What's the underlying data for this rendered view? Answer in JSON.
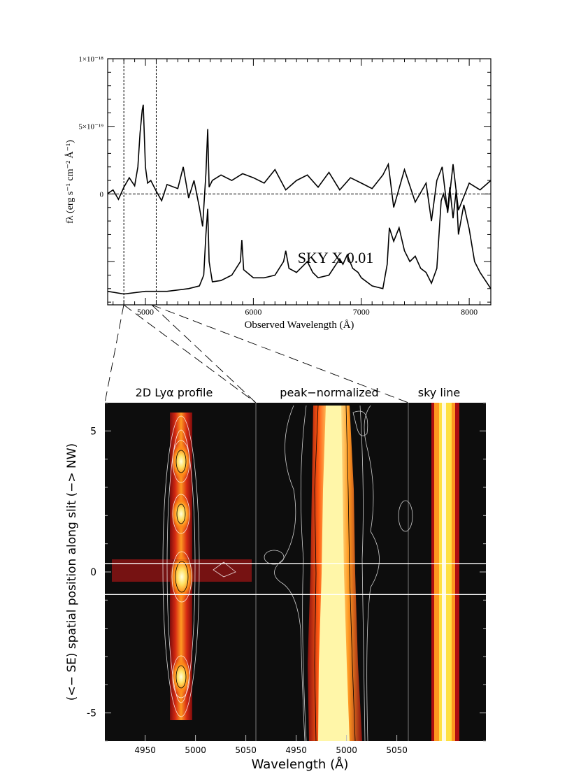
{
  "chart_data": [
    {
      "type": "line",
      "xlabel": "Observed Wavelength (Å)",
      "ylabel": "fλ (erg s⁻¹ cm⁻² Å⁻¹)",
      "xlim": [
        4650,
        8200
      ],
      "ylim": [
        -8.2e-19,
        1e-18
      ],
      "x_ticks": [
        5000,
        6000,
        7000,
        8000
      ],
      "y_ticks": [
        {
          "value": 1e-18,
          "label": "1×10⁻¹⁸"
        },
        {
          "value": 5e-19,
          "label": "5×10⁻¹⁹"
        },
        {
          "value": 0,
          "label": "0"
        }
      ],
      "vertical_markers": [
        4800,
        5100
      ],
      "annotation": "SKY X 0.01",
      "series": [
        {
          "name": "",
          "x": [
            4650,
            4700,
            4750,
            4800,
            4850,
            4900,
            4930,
            4950,
            4970,
            4980,
            5000,
            5020,
            5050,
            5100,
            5150,
            5200,
            5300,
            5350,
            5400,
            5450,
            5500,
            5530,
            5560,
            5577,
            5590,
            5620,
            5700,
            5800,
            5900,
            6000,
            6100,
            6200,
            6300,
            6400,
            6500,
            6600,
            6700,
            6800,
            6900,
            7000,
            7100,
            7200,
            7250,
            7300,
            7400,
            7500,
            7600,
            7650,
            7700,
            7750,
            7800,
            7850,
            7900,
            8000,
            8100,
            8200
          ],
          "y": [
            3e-21,
            3e-20,
            -4e-20,
            5e-20,
            1.2e-19,
            6e-20,
            2e-19,
            4.5e-19,
            6.2e-19,
            6.6e-19,
            2e-19,
            8e-20,
            1e-19,
            2e-20,
            -5e-20,
            7e-20,
            4e-20,
            2e-19,
            -3e-20,
            1e-19,
            -1e-19,
            -2.4e-19,
            1.5e-19,
            4.8e-19,
            5e-20,
            1e-19,
            1.4e-19,
            1e-19,
            1.5e-19,
            1.2e-19,
            8e-20,
            1.8e-19,
            3e-20,
            1e-19,
            1.4e-19,
            5e-20,
            1.6e-19,
            3e-20,
            1.2e-19,
            8e-20,
            4e-20,
            1.4e-19,
            2.2e-19,
            -1e-19,
            1.8e-19,
            -6e-20,
            8e-20,
            -2e-19,
            1e-19,
            2e-19,
            -1.4e-19,
            2.2e-19,
            -1.2e-19,
            8e-20,
            3e-20,
            1e-19
          ]
        },
        {
          "name": "SKY X 0.01",
          "x": [
            4650,
            4800,
            5000,
            5200,
            5400,
            5500,
            5540,
            5560,
            5577,
            5590,
            5620,
            5700,
            5800,
            5880,
            5893,
            5910,
            6000,
            6100,
            6200,
            6280,
            6300,
            6330,
            6400,
            6450,
            6500,
            6550,
            6600,
            6700,
            6800,
            6830,
            6870,
            6920,
            6970,
            7000,
            7100,
            7200,
            7240,
            7260,
            7300,
            7350,
            7400,
            7450,
            7500,
            7550,
            7600,
            7650,
            7700,
            7740,
            7760,
            7800,
            7820,
            7850,
            7880,
            7900,
            7950,
            8000,
            8050,
            8100,
            8200
          ],
          "y": [
            -7.2e-19,
            -7.4e-19,
            -7.2e-19,
            -7.2e-19,
            -7e-19,
            -6.8e-19,
            -6e-19,
            -3e-19,
            -1.1e-19,
            -5e-19,
            -6.5e-19,
            -6.4e-19,
            -6e-19,
            -5e-19,
            -3.4e-19,
            -5.6e-19,
            -6.2e-19,
            -6.2e-19,
            -6e-19,
            -5e-19,
            -4.2e-19,
            -5.5e-19,
            -5.8e-19,
            -5.4e-19,
            -5e-19,
            -5.8e-19,
            -6.2e-19,
            -6e-19,
            -4.8e-19,
            -5.2e-19,
            -4.5e-19,
            -5.5e-19,
            -5.8e-19,
            -6.2e-19,
            -6.8e-19,
            -7e-19,
            -5.2e-19,
            -2.5e-19,
            -3.5e-19,
            -2.5e-19,
            -4.2e-19,
            -5e-19,
            -4.6e-19,
            -5.5e-19,
            -5.8e-19,
            -6.6e-19,
            -5.5e-19,
            -5e-20,
            0,
            -1.2e-19,
            5e-20,
            -1.8e-19,
            3e-20,
            -3e-19,
            -8e-20,
            -2.6e-19,
            -5e-19,
            -5.8e-19,
            -7e-19
          ]
        }
      ]
    },
    {
      "type": "heatmap",
      "panels": [
        {
          "title": "2D Lyα profile",
          "x_ticks": [
            4950,
            5000,
            5050
          ]
        },
        {
          "title": "peak−normalized",
          "x_ticks": [
            4950,
            5000,
            5050
          ]
        },
        {
          "title": "sky line",
          "x_ticks": []
        }
      ],
      "xlabel": "Wavelength (Å)",
      "ylabel": "(<− SE) spatial position along slit (−> NW)",
      "ylim": [
        -6,
        6
      ],
      "y_ticks": [
        -5,
        0,
        5
      ],
      "slit_lines_y": [
        0.3,
        -0.8
      ],
      "knots": [
        {
          "wavelength": 4980,
          "position": 4.0
        },
        {
          "wavelength": 4979,
          "position": 2.1
        },
        {
          "wavelength": 4980,
          "position": 0.0
        },
        {
          "wavelength": 4980,
          "position": -3.8
        }
      ]
    }
  ]
}
